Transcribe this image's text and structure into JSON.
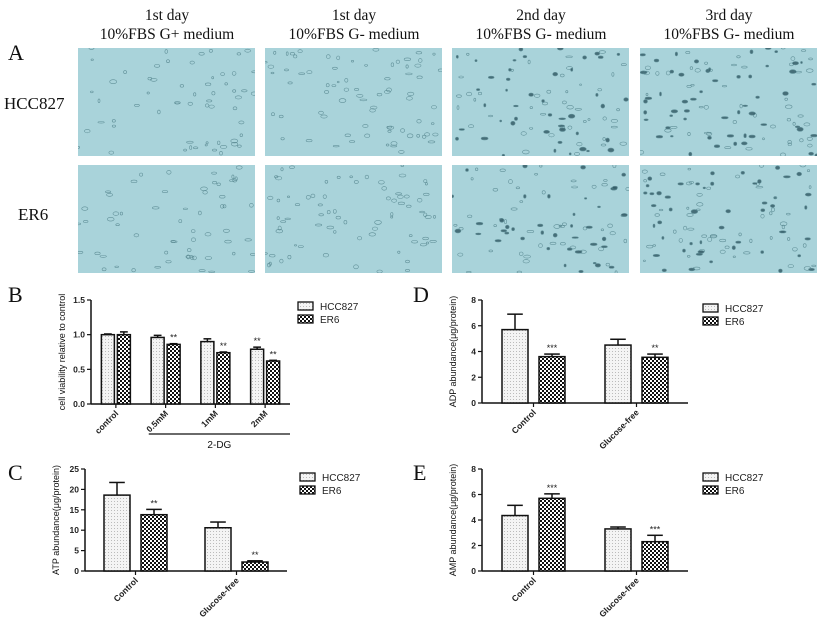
{
  "panelA": {
    "letter": "A",
    "columns": [
      {
        "line1": "1st day",
        "line2": "10%FBS G+ medium"
      },
      {
        "line1": "1st day",
        "line2": "10%FBS G- medium"
      },
      {
        "line1": "2nd  day",
        "line2": "10%FBS G- medium"
      },
      {
        "line1": "3rd day",
        "line2": "10%FBS G- medium"
      }
    ],
    "rows": [
      "HCC827",
      "ER6"
    ],
    "image_color": "#a9d3da"
  },
  "colors": {
    "hcc827_fill": "#f2f2f2",
    "er6_fill": "#222222",
    "axis": "#111111"
  },
  "chart_data": [
    {
      "panel": "B",
      "type": "bar",
      "ylabel": "cell viability relative to control",
      "ylim": [
        0,
        1.5
      ],
      "yticks": [
        "0.0",
        "0.5",
        "1.0",
        "1.5"
      ],
      "categories": [
        "control",
        "0.5mM",
        "1mM",
        "2mM"
      ],
      "group_label": "2-DG",
      "legend_placement": "right",
      "series": [
        {
          "name": "HCC827",
          "values": [
            1.0,
            0.96,
            0.9,
            0.79
          ],
          "errors": [
            0.01,
            0.03,
            0.04,
            0.03
          ],
          "sig": [
            "",
            "",
            "",
            "**"
          ]
        },
        {
          "name": "ER6",
          "values": [
            1.0,
            0.86,
            0.74,
            0.62
          ],
          "errors": [
            0.04,
            0.01,
            0.01,
            0.01
          ],
          "sig": [
            "",
            "**",
            "**",
            "**"
          ]
        }
      ]
    },
    {
      "panel": "D",
      "type": "bar",
      "ylabel": "ADP abundance(μg/protein)",
      "ylim": [
        0,
        8
      ],
      "yticks": [
        "0",
        "2",
        "4",
        "6",
        "8"
      ],
      "categories": [
        "Control",
        "Glucose-free"
      ],
      "legend_placement": "right",
      "series": [
        {
          "name": "HCC827",
          "values": [
            5.7,
            4.5
          ],
          "errors": [
            1.2,
            0.45
          ],
          "sig": [
            "",
            ""
          ]
        },
        {
          "name": "ER6",
          "values": [
            3.6,
            3.55
          ],
          "errors": [
            0.2,
            0.25
          ],
          "sig": [
            "***",
            "**"
          ]
        }
      ]
    },
    {
      "panel": "C",
      "type": "bar",
      "ylabel": "ATP abundance(μg/protein)",
      "ylim": [
        0,
        25
      ],
      "yticks": [
        "0",
        "5",
        "10",
        "15",
        "20",
        "25"
      ],
      "categories": [
        "Control",
        "Glucose-free"
      ],
      "legend_placement": "right",
      "series": [
        {
          "name": "HCC827",
          "values": [
            18.6,
            10.6
          ],
          "errors": [
            3.1,
            1.4
          ],
          "sig": [
            "",
            ""
          ]
        },
        {
          "name": "ER6",
          "values": [
            13.8,
            2.2
          ],
          "errors": [
            1.3,
            0.3
          ],
          "sig": [
            "**",
            "**"
          ]
        }
      ]
    },
    {
      "panel": "E",
      "type": "bar",
      "ylabel": "AMP abundance(μg/protein)",
      "ylim": [
        0,
        8
      ],
      "yticks": [
        "0",
        "2",
        "4",
        "6",
        "8"
      ],
      "categories": [
        "Control",
        "Glucose-free"
      ],
      "legend_placement": "right",
      "series": [
        {
          "name": "HCC827",
          "values": [
            4.35,
            3.3
          ],
          "errors": [
            0.8,
            0.15
          ],
          "sig": [
            "",
            ""
          ]
        },
        {
          "name": "ER6",
          "values": [
            5.7,
            2.3
          ],
          "errors": [
            0.35,
            0.5
          ],
          "sig": [
            "***",
            "***"
          ]
        }
      ]
    }
  ]
}
